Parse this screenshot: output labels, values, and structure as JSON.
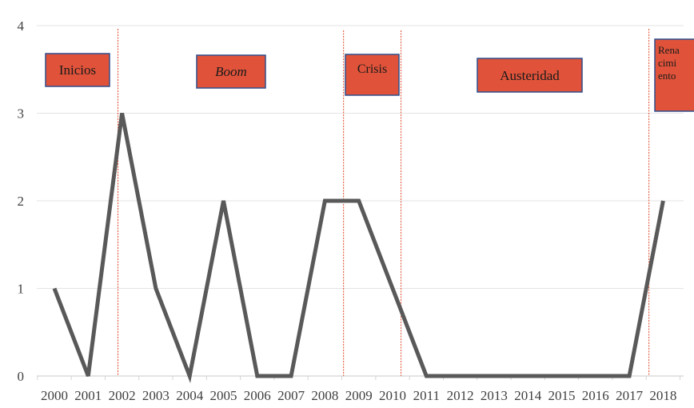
{
  "chart_data": {
    "type": "line",
    "x": [
      "2000",
      "2001",
      "2002",
      "2003",
      "2004",
      "2005",
      "2006",
      "2007",
      "2008",
      "2009",
      "2010",
      "2011",
      "2012",
      "2013",
      "2014",
      "2015",
      "2016",
      "2017",
      "2018"
    ],
    "series": [
      {
        "values": [
          1,
          0,
          3,
          1,
          0,
          2,
          0,
          0,
          2,
          2,
          1,
          0,
          0,
          0,
          0,
          0,
          0,
          0,
          2
        ]
      }
    ],
    "ylim": [
      0,
      4
    ],
    "yticks": [
      "0",
      "1",
      "2",
      "3",
      "4"
    ],
    "grid": true,
    "line_color": "#595959",
    "period_dividers_after": [
      "2001",
      "2008",
      "2010",
      "2017"
    ],
    "divider_color": "#e04a2a",
    "period_labels": [
      {
        "text": "Inicios",
        "italic": false
      },
      {
        "text": "Boom",
        "italic": true
      },
      {
        "text": "Crisis",
        "italic": false
      },
      {
        "text": "Austeridad",
        "italic": false
      },
      {
        "text": "Rena cimi ento",
        "lines": [
          "Rena",
          "cimi",
          "ento"
        ],
        "italic": false
      }
    ],
    "label_fill": "#e0533a",
    "label_border": "#2f4e8c"
  }
}
